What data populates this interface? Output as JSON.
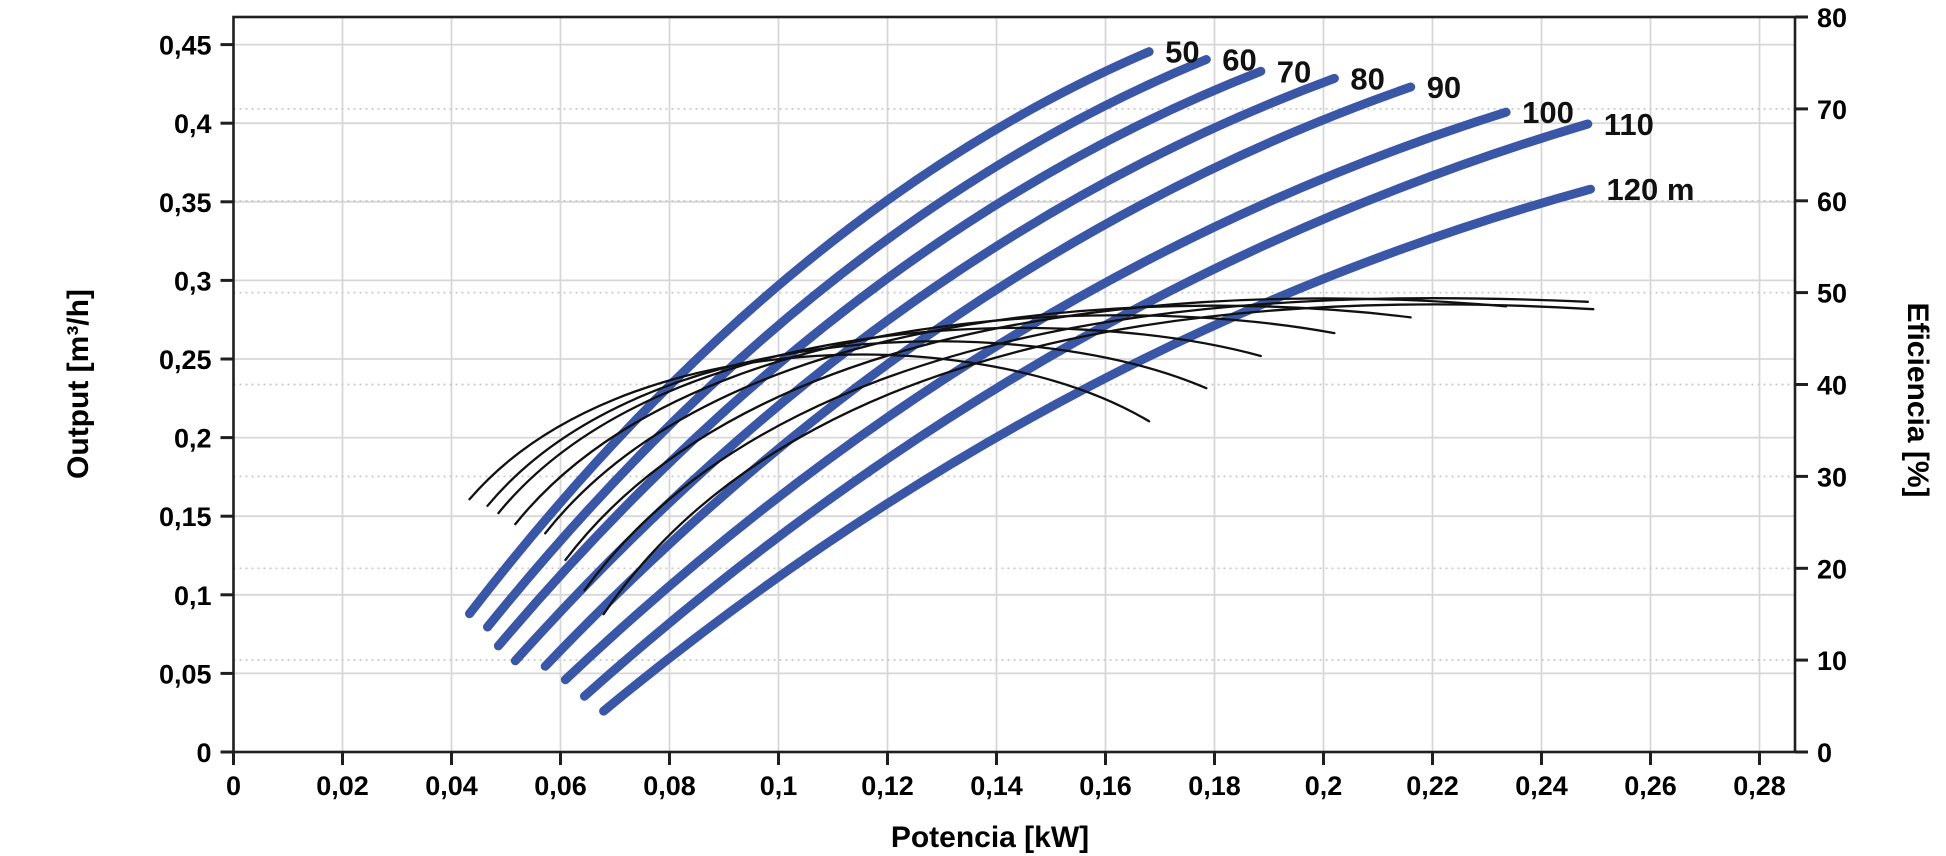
{
  "chart_data": {
    "type": "line",
    "title": "",
    "description": "Pump performance chart: blue power curves per head (50-120 m) and thin black efficiency curves",
    "axes": {
      "x": {
        "title": "Potencia [kW]",
        "min": 0,
        "max": 0.2866,
        "ticks": [
          {
            "t": "0",
            "v": 0
          },
          {
            "t": "0,02",
            "v": 0.02
          },
          {
            "t": "0,04",
            "v": 0.04
          },
          {
            "t": "0,06",
            "v": 0.06
          },
          {
            "t": "0,08",
            "v": 0.08
          },
          {
            "t": "0,1",
            "v": 0.1
          },
          {
            "t": "0,12",
            "v": 0.12
          },
          {
            "t": "0,14",
            "v": 0.14
          },
          {
            "t": "0,16",
            "v": 0.16
          },
          {
            "t": "0,18",
            "v": 0.18
          },
          {
            "t": "0,2",
            "v": 0.2
          },
          {
            "t": "0,22",
            "v": 0.22
          },
          {
            "t": "0,24",
            "v": 0.24
          },
          {
            "t": "0,26",
            "v": 0.26
          },
          {
            "t": "0,28",
            "v": 0.28
          }
        ],
        "grid": "solid"
      },
      "y_left": {
        "title": "Output [m³/h]",
        "min": 0,
        "max": 0.4675,
        "ticks": [
          {
            "t": "0",
            "v": 0
          },
          {
            "t": "0,05",
            "v": 0.05
          },
          {
            "t": "0,1",
            "v": 0.1
          },
          {
            "t": "0,15",
            "v": 0.15
          },
          {
            "t": "0,2",
            "v": 0.2
          },
          {
            "t": "0,25",
            "v": 0.25
          },
          {
            "t": "0,3",
            "v": 0.3
          },
          {
            "t": "0,35",
            "v": 0.35
          },
          {
            "t": "0,4",
            "v": 0.4
          },
          {
            "t": "0,45",
            "v": 0.45
          }
        ],
        "grid": "solid"
      },
      "y_right": {
        "title": "Eficiencia [%]",
        "min": 0,
        "max": 80,
        "ticks": [
          {
            "t": "0",
            "v": 0
          },
          {
            "t": "10",
            "v": 10
          },
          {
            "t": "20",
            "v": 20
          },
          {
            "t": "30",
            "v": 30
          },
          {
            "t": "40",
            "v": 40
          },
          {
            "t": "50",
            "v": 50
          },
          {
            "t": "60",
            "v": 60
          },
          {
            "t": "70",
            "v": 70
          },
          {
            "t": "80",
            "v": 80
          }
        ],
        "grid": "dotted"
      }
    },
    "head_curves": [
      {
        "head": 50,
        "label": "50",
        "p0": [
          0.0433,
          0.088
        ],
        "c": [
          0.1007,
          0.3454
        ],
        "p1": [
          0.168,
          0.4455
        ]
      },
      {
        "head": 60,
        "label": "60",
        "p0": [
          0.0466,
          0.0795
        ],
        "c": [
          0.1073,
          0.3394
        ],
        "p1": [
          0.1785,
          0.4405
        ]
      },
      {
        "head": 70,
        "label": "70",
        "p0": [
          0.0486,
          0.0675
        ],
        "c": [
          0.113,
          0.3307
        ],
        "p1": [
          0.1885,
          0.433
        ]
      },
      {
        "head": 80,
        "label": "80",
        "p0": [
          0.0517,
          0.058
        ],
        "c": [
          0.1208,
          0.3248
        ],
        "p1": [
          0.202,
          0.4285
        ]
      },
      {
        "head": 90,
        "label": "90",
        "p0": [
          0.0572,
          0.0545
        ],
        "c": [
          0.1303,
          0.3198
        ],
        "p1": [
          0.216,
          0.423
        ]
      },
      {
        "head": 100,
        "label": "100",
        "p0": [
          0.0609,
          0.046
        ],
        "c": [
          0.1403,
          0.3059
        ],
        "p1": [
          0.2335,
          0.407
        ]
      },
      {
        "head": 110,
        "label": "110",
        "p0": [
          0.0644,
          0.0355
        ],
        "c": [
          0.1491,
          0.2976
        ],
        "p1": [
          0.2485,
          0.3995
        ]
      },
      {
        "head": 120,
        "label": "120 m",
        "p0": [
          0.0679,
          0.026
        ],
        "c": [
          0.1512,
          0.265
        ],
        "p1": [
          0.249,
          0.358
        ]
      }
    ],
    "efficiency_curves": [
      {
        "head": 50,
        "p0": [
          0.0433,
          27.5
        ],
        "c1": [
          0.0707,
          46.5
        ],
        "c2": [
          0.1368,
          47.0
        ],
        "p1": [
          0.168,
          36.0
        ]
      },
      {
        "head": 60,
        "p0": [
          0.0466,
          26.8
        ],
        "c1": [
          0.0756,
          47.5
        ],
        "c2": [
          0.1455,
          48.0
        ],
        "p1": [
          0.1785,
          39.6
        ]
      },
      {
        "head": 70,
        "p0": [
          0.0486,
          26.0
        ],
        "c1": [
          0.0794,
          48.3
        ],
        "c2": [
          0.1535,
          48.8
        ],
        "p1": [
          0.1885,
          43.1
        ]
      },
      {
        "head": 80,
        "p0": [
          0.0517,
          24.8
        ],
        "c1": [
          0.0848,
          49.2
        ],
        "c2": [
          0.1644,
          49.7
        ],
        "p1": [
          0.202,
          45.6
        ]
      },
      {
        "head": 90,
        "p0": [
          0.0572,
          23.8
        ],
        "c1": [
          0.0921,
          50.0
        ],
        "c2": [
          0.1763,
          50.3
        ],
        "p1": [
          0.216,
          47.3
        ]
      },
      {
        "head": 100,
        "p0": [
          0.0609,
          20.9
        ],
        "c1": [
          0.0989,
          50.6
        ],
        "c2": [
          0.1904,
          50.8
        ],
        "p1": [
          0.2335,
          48.5
        ]
      },
      {
        "head": 110,
        "p0": [
          0.0644,
          17.6
        ],
        "c1": [
          0.1049,
          50.8
        ],
        "c2": [
          0.2025,
          50.2
        ],
        "p1": [
          0.2485,
          49.0
        ]
      },
      {
        "head": 120,
        "p0": [
          0.0679,
          15.0
        ],
        "c1": [
          0.1079,
          50.0
        ],
        "c2": [
          0.2041,
          49.8
        ],
        "p1": [
          0.2495,
          48.2
        ]
      }
    ],
    "colors": {
      "curve_blue": "#3a56a7",
      "curve_black": "#111111",
      "grid": "#d7d7d7",
      "grid_dotted": "#c9c9c9",
      "axis": "#1f1f1f",
      "text": "#000000"
    }
  }
}
